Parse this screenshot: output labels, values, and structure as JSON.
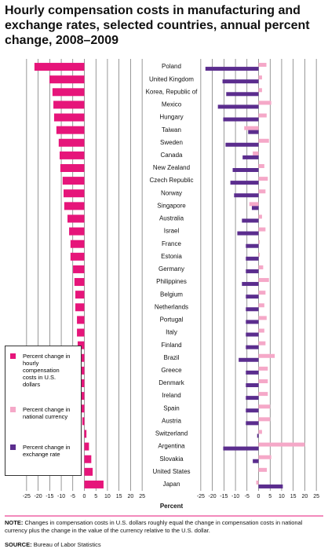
{
  "title": "Hourly compensation costs in manufacturing and exchange rates, selected countries, annual percent change, 2008–2009",
  "note_label": "NOTE:",
  "note": "Changes in compensation costs in U.S. dollars roughly equal the change in compensation costs in national currency plus the change in the value of the currency relative to the U.S. dollar.",
  "source_label": "SOURCE:",
  "source": "Bureau of Labor Statistics",
  "chart_data": [
    {
      "type": "barh",
      "xlabel": "Percent",
      "categories": [
        "Poland",
        "United Kingdom",
        "Korea, Republic of",
        "Mexico",
        "Hungary",
        "Taiwan",
        "Sweden",
        "Canada",
        "New Zealand",
        "Czech Republic",
        "Norway",
        "Singapore",
        "Australia",
        "Israel",
        "France",
        "Estonia",
        "Germany",
        "Philippines",
        "Belgium",
        "Netherlands",
        "Portugal",
        "Italy",
        "Finland",
        "Brazil",
        "Greece",
        "Denmark",
        "Ireland",
        "Spain",
        "Austria",
        "Switzerland",
        "Argentina",
        "Slovakia",
        "United States",
        "Japan"
      ],
      "series": [
        {
          "name": "Percent change in hourly compensation costs in U.S. dollars",
          "color": "#e6157a",
          "values": [
            -21.6,
            -15.1,
            -13.8,
            -13.4,
            -13.1,
            -12.1,
            -11.1,
            -10.7,
            -10.4,
            -9.4,
            -9.0,
            -8.7,
            -7.3,
            -6.6,
            -6.0,
            -6.0,
            -4.9,
            -4.3,
            -3.9,
            -3.9,
            -3.2,
            -3.2,
            -2.9,
            -2.9,
            -2.6,
            -2.2,
            -1.9,
            -1.2,
            -0.9,
            0.9,
            2.0,
            3.0,
            3.6,
            8.3
          ]
        }
      ],
      "xlim": [
        -27,
        27
      ],
      "xticks": [
        -25,
        -20,
        -15,
        -10,
        -5,
        0,
        5,
        10,
        15,
        20,
        25
      ],
      "grid": true
    },
    {
      "type": "barh",
      "series": [
        {
          "name": "Percent change in national currency",
          "color": "#f5a8c8",
          "values": [
            3.4,
            1.5,
            1.5,
            5.5,
            3.5,
            -6.2,
            4.5,
            -2.5,
            2.5,
            4.0,
            3.0,
            -4.0,
            1.5,
            3.0,
            0.5,
            0.5,
            2.0,
            4.5,
            3.0,
            2.5,
            3.5,
            2.5,
            3.0,
            7.0,
            4.0,
            4.0,
            4.0,
            5.0,
            5.0,
            1.5,
            20.0,
            5.5,
            3.6,
            -1.0
          ]
        },
        {
          "name": "Percent change in exchange rate",
          "color": "#5b2d8e",
          "values": [
            -23.0,
            -15.6,
            -14.0,
            -17.6,
            -15.3,
            -4.5,
            -14.3,
            -6.9,
            -11.2,
            -12.2,
            -10.6,
            -2.9,
            -7.2,
            -9.2,
            -5.5,
            -5.5,
            -5.5,
            -7.2,
            -5.5,
            -5.5,
            -5.5,
            -5.5,
            -5.5,
            -8.6,
            -5.5,
            -5.5,
            -5.5,
            -5.5,
            -5.5,
            -0.6,
            -15.3,
            -2.5,
            0,
            10.5
          ]
        }
      ],
      "xlim": [
        -27,
        27
      ],
      "xticks": [
        -25,
        -20,
        -15,
        -10,
        -5,
        0,
        5,
        10,
        15,
        20,
        25
      ],
      "grid": true
    }
  ]
}
